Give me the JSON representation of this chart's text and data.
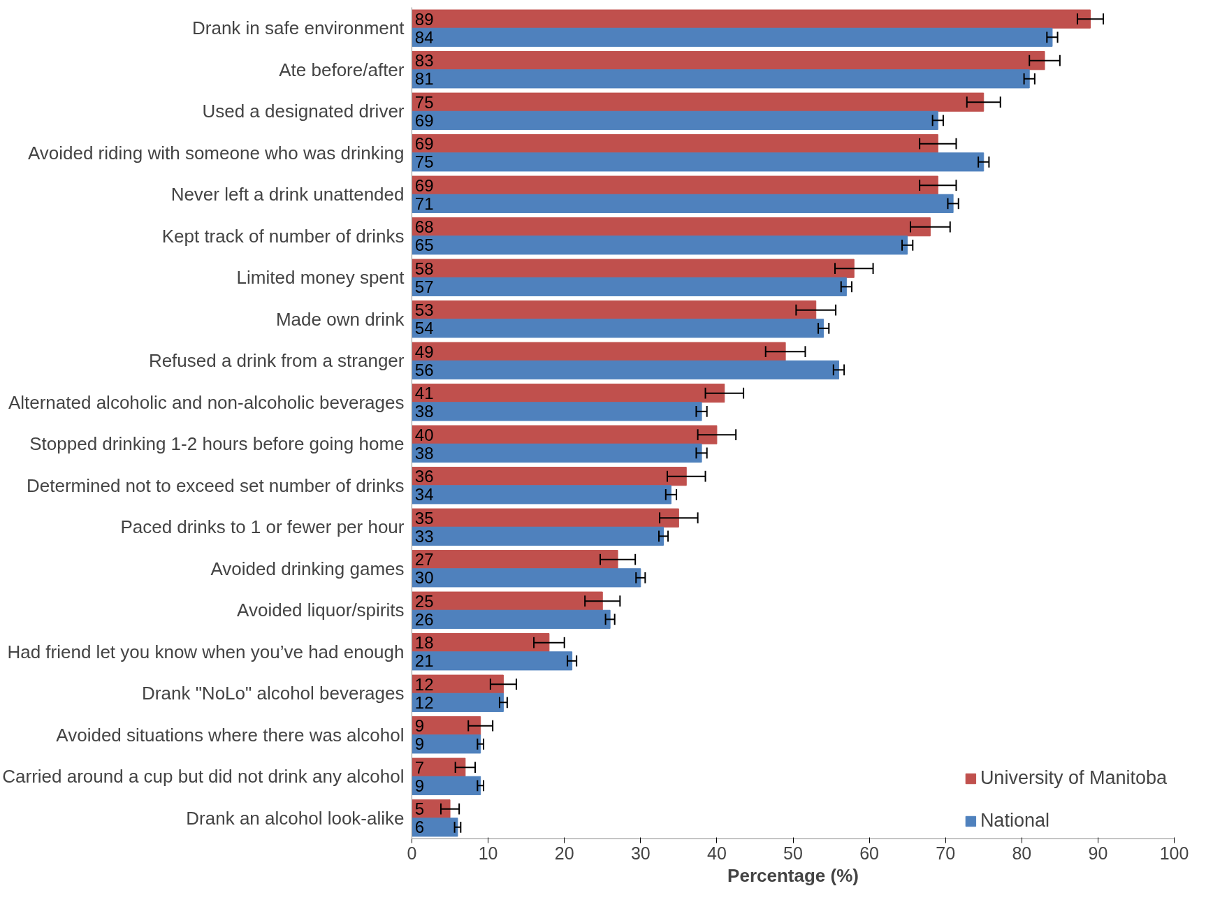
{
  "chart_data": {
    "type": "bar",
    "orientation": "horizontal",
    "xlabel": "Percentage (%)",
    "categories": [
      "Drank in safe environment",
      "Ate before/after",
      "Used a designated driver",
      "Avoided riding with someone who was drinking",
      "Never left a drink unattended",
      "Kept track of number of drinks",
      "Limited money spent",
      "Made own drink",
      "Refused a drink from a stranger",
      "Alternated alcoholic and non-alcoholic beverages",
      "Stopped drinking 1-2 hours before going home",
      "Determined not to exceed set number of drinks",
      "Paced drinks to 1 or fewer per hour",
      "Avoided drinking games",
      "Avoided liquor/spirits",
      "Had friend let you know when you’ve had enough",
      "Drank \"NoLo\" alcohol beverages",
      "Avoided situations where there was alcohol",
      "Carried around a cup but did not drink any alcohol",
      "Drank an alcohol look-alike"
    ],
    "series": [
      {
        "name": "University of Manitoba",
        "color": "#c0504d",
        "values": [
          89,
          83,
          75,
          69,
          69,
          68,
          58,
          53,
          49,
          41,
          40,
          36,
          35,
          27,
          25,
          18,
          12,
          9,
          7,
          5
        ],
        "errors": [
          1.7,
          2,
          2.2,
          2.4,
          2.4,
          2.6,
          2.5,
          2.6,
          2.6,
          2.5,
          2.5,
          2.5,
          2.5,
          2.3,
          2.3,
          2,
          1.7,
          1.6,
          1.3,
          1.2
        ]
      },
      {
        "name": "National",
        "color": "#4f81bd",
        "values": [
          84,
          81,
          69,
          75,
          71,
          65,
          57,
          54,
          56,
          38,
          38,
          34,
          33,
          30,
          26,
          21,
          12,
          9,
          9,
          6
        ],
        "errors": [
          0.7,
          0.7,
          0.7,
          0.7,
          0.7,
          0.7,
          0.7,
          0.7,
          0.7,
          0.7,
          0.7,
          0.7,
          0.6,
          0.6,
          0.6,
          0.6,
          0.5,
          0.4,
          0.4,
          0.4
        ]
      }
    ],
    "xlim": [
      0,
      100
    ],
    "xticks": [
      0,
      10,
      20,
      30,
      40,
      50,
      60,
      70,
      80,
      90,
      100
    ],
    "data_labels": true,
    "grid": false,
    "legend": "bottom right"
  }
}
